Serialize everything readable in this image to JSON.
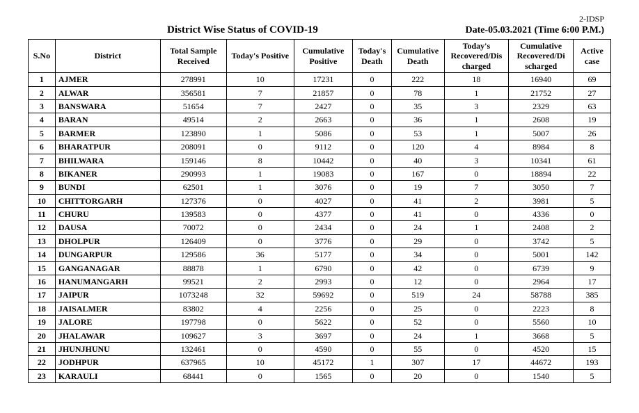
{
  "meta": {
    "top_id": "2-IDSP",
    "title": "District Wise Status of  COVID-19",
    "date": "Date-05.03.2021 (Time 6:00 P.M.)"
  },
  "columns": [
    "S.No",
    "District",
    "Total Sample Received",
    "Today's Positive",
    "Cumulative Positive",
    "Today's Death",
    "Cumulative Death",
    "Today's Recovered/Dis charged",
    "Cumulative Recovered/Di scharged",
    "Active case"
  ],
  "rows": [
    {
      "sno": "1",
      "district": "AJMER",
      "sample": "278991",
      "tpos": "10",
      "cpos": "17231",
      "tdeath": "0",
      "cdeath": "222",
      "trec": "18",
      "crec": "16940",
      "active": "69"
    },
    {
      "sno": "2",
      "district": "ALWAR",
      "sample": "356581",
      "tpos": "7",
      "cpos": "21857",
      "tdeath": "0",
      "cdeath": "78",
      "trec": "1",
      "crec": "21752",
      "active": "27"
    },
    {
      "sno": "3",
      "district": "BANSWARA",
      "sample": "51654",
      "tpos": "7",
      "cpos": "2427",
      "tdeath": "0",
      "cdeath": "35",
      "trec": "3",
      "crec": "2329",
      "active": "63"
    },
    {
      "sno": "4",
      "district": "BARAN",
      "sample": "49514",
      "tpos": "2",
      "cpos": "2663",
      "tdeath": "0",
      "cdeath": "36",
      "trec": "1",
      "crec": "2608",
      "active": "19"
    },
    {
      "sno": "5",
      "district": "BARMER",
      "sample": "123890",
      "tpos": "1",
      "cpos": "5086",
      "tdeath": "0",
      "cdeath": "53",
      "trec": "1",
      "crec": "5007",
      "active": "26"
    },
    {
      "sno": "6",
      "district": "BHARATPUR",
      "sample": "208091",
      "tpos": "0",
      "cpos": "9112",
      "tdeath": "0",
      "cdeath": "120",
      "trec": "4",
      "crec": "8984",
      "active": "8"
    },
    {
      "sno": "7",
      "district": "BHILWARA",
      "sample": "159146",
      "tpos": "8",
      "cpos": "10442",
      "tdeath": "0",
      "cdeath": "40",
      "trec": "3",
      "crec": "10341",
      "active": "61"
    },
    {
      "sno": "8",
      "district": "BIKANER",
      "sample": "290993",
      "tpos": "1",
      "cpos": "19083",
      "tdeath": "0",
      "cdeath": "167",
      "trec": "0",
      "crec": "18894",
      "active": "22"
    },
    {
      "sno": "9",
      "district": "BUNDI",
      "sample": "62501",
      "tpos": "1",
      "cpos": "3076",
      "tdeath": "0",
      "cdeath": "19",
      "trec": "7",
      "crec": "3050",
      "active": "7"
    },
    {
      "sno": "10",
      "district": "CHITTORGARH",
      "sample": "127376",
      "tpos": "0",
      "cpos": "4027",
      "tdeath": "0",
      "cdeath": "41",
      "trec": "2",
      "crec": "3981",
      "active": "5"
    },
    {
      "sno": "11",
      "district": "CHURU",
      "sample": "139583",
      "tpos": "0",
      "cpos": "4377",
      "tdeath": "0",
      "cdeath": "41",
      "trec": "0",
      "crec": "4336",
      "active": "0"
    },
    {
      "sno": "12",
      "district": "DAUSA",
      "sample": "70072",
      "tpos": "0",
      "cpos": "2434",
      "tdeath": "0",
      "cdeath": "24",
      "trec": "1",
      "crec": "2408",
      "active": "2"
    },
    {
      "sno": "13",
      "district": "DHOLPUR",
      "sample": "126409",
      "tpos": "0",
      "cpos": "3776",
      "tdeath": "0",
      "cdeath": "29",
      "trec": "0",
      "crec": "3742",
      "active": "5"
    },
    {
      "sno": "14",
      "district": "DUNGARPUR",
      "sample": "129586",
      "tpos": "36",
      "cpos": "5177",
      "tdeath": "0",
      "cdeath": "34",
      "trec": "0",
      "crec": "5001",
      "active": "142"
    },
    {
      "sno": "15",
      "district": "GANGANAGAR",
      "sample": "88878",
      "tpos": "1",
      "cpos": "6790",
      "tdeath": "0",
      "cdeath": "42",
      "trec": "0",
      "crec": "6739",
      "active": "9"
    },
    {
      "sno": "16",
      "district": "HANUMANGARH",
      "sample": "99521",
      "tpos": "2",
      "cpos": "2993",
      "tdeath": "0",
      "cdeath": "12",
      "trec": "0",
      "crec": "2964",
      "active": "17"
    },
    {
      "sno": "17",
      "district": "JAIPUR",
      "sample": "1073248",
      "tpos": "32",
      "cpos": "59692",
      "tdeath": "0",
      "cdeath": "519",
      "trec": "24",
      "crec": "58788",
      "active": "385"
    },
    {
      "sno": "18",
      "district": "JAISALMER",
      "sample": "83802",
      "tpos": "4",
      "cpos": "2256",
      "tdeath": "0",
      "cdeath": "25",
      "trec": "0",
      "crec": "2223",
      "active": "8"
    },
    {
      "sno": "19",
      "district": "JALORE",
      "sample": "197798",
      "tpos": "0",
      "cpos": "5622",
      "tdeath": "0",
      "cdeath": "52",
      "trec": "0",
      "crec": "5560",
      "active": "10"
    },
    {
      "sno": "20",
      "district": "JHALAWAR",
      "sample": "109627",
      "tpos": "3",
      "cpos": "3697",
      "tdeath": "0",
      "cdeath": "24",
      "trec": "1",
      "crec": "3668",
      "active": "5"
    },
    {
      "sno": "21",
      "district": "JHUNJHUNU",
      "sample": "132461",
      "tpos": "0",
      "cpos": "4590",
      "tdeath": "0",
      "cdeath": "55",
      "trec": "0",
      "crec": "4520",
      "active": "15"
    },
    {
      "sno": "22",
      "district": "JODHPUR",
      "sample": "637965",
      "tpos": "10",
      "cpos": "45172",
      "tdeath": "1",
      "cdeath": "307",
      "trec": "17",
      "crec": "44672",
      "active": "193"
    },
    {
      "sno": "23",
      "district": "KARAULI",
      "sample": "68441",
      "tpos": "0",
      "cpos": "1565",
      "tdeath": "0",
      "cdeath": "20",
      "trec": "0",
      "crec": "1540",
      "active": "5"
    }
  ],
  "style": {
    "font_family": "Times New Roman",
    "header_fontsize": 15,
    "date_fontsize": 14,
    "cell_fontsize": 12,
    "border_color": "#000000",
    "background_color": "#ffffff",
    "text_color": "#000000"
  }
}
